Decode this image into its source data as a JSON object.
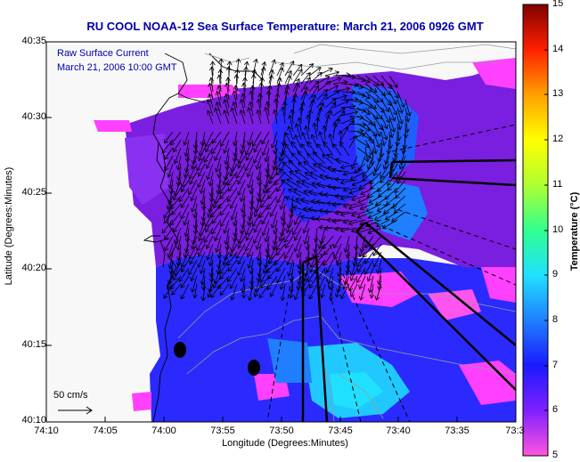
{
  "title": "RU COOL   NOAA-12  Sea Surface Temperature:  March 21, 2006 0926 GMT",
  "current_label_line1": "Raw Surface Current",
  "current_label_line2": "March 21, 2006 10:00 GMT",
  "scale_label": "50 cm/s",
  "xaxis": {
    "label": "Longitude (Degrees:Minutes)",
    "ticks": [
      "74:10",
      "74:05",
      "74:00",
      "73:55",
      "73:50",
      "73:45",
      "73:40",
      "73:35",
      "73:3"
    ]
  },
  "yaxis": {
    "label": "Latitude (Degrees:Minutes)",
    "ticks": [
      "40:35",
      "40:30",
      "40:25",
      "40:20",
      "40:15",
      "40:10"
    ]
  },
  "colorbar": {
    "label": "Temperature (°C)",
    "ticks": [
      "15",
      "14",
      "13",
      "12",
      "11",
      "10",
      "9",
      "8",
      "7",
      "6",
      "5"
    ],
    "colors": [
      "#ff55dd",
      "#8020ff",
      "#1a1aff",
      "#1f7fff",
      "#20e0ff",
      "#30ff90",
      "#b0ff30",
      "#ffff00",
      "#ffa000",
      "#ff2000",
      "#800000"
    ]
  },
  "colors": {
    "land": "#f8f8f8",
    "water_blue": "#2a2aff",
    "water_purple": "#7a1ee0",
    "magenta": "#ff40ff",
    "cyan": "#20e0ff",
    "axis_text": "#000000",
    "title_text": "#0000aa"
  }
}
